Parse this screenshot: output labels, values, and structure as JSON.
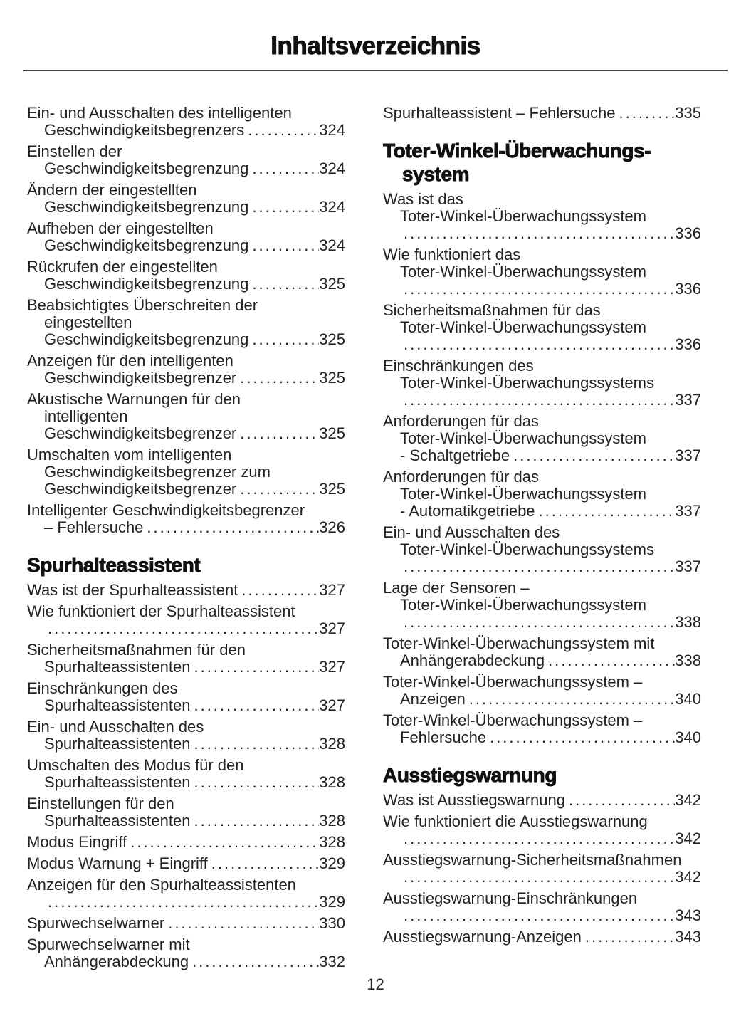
{
  "page": {
    "title": "Inhaltsverzeichnis",
    "footer_page_number": "12"
  },
  "colors": {
    "text": "#222222",
    "heading": "#111111",
    "rule": "#3a3a3a",
    "background": "#ffffff"
  },
  "columns": [
    {
      "blocks": [
        {
          "type": "entries",
          "items": [
            {
              "lines": [
                "Ein- und Ausschalten des intelligenten",
                "Geschwindigkeitsbegrenzers"
              ],
              "page": "324"
            },
            {
              "lines": [
                "Einstellen der",
                "Geschwindigkeitsbegrenzung"
              ],
              "page": "324"
            },
            {
              "lines": [
                "Ändern der eingestellten",
                "Geschwindigkeitsbegrenzung"
              ],
              "page": "324"
            },
            {
              "lines": [
                "Aufheben der eingestellten",
                "Geschwindigkeitsbegrenzung"
              ],
              "page": "324"
            },
            {
              "lines": [
                "Rückrufen der eingestellten",
                "Geschwindigkeitsbegrenzung"
              ],
              "page": "325"
            },
            {
              "lines": [
                "Beabsichtigtes Überschreiten der",
                "eingestellten",
                "Geschwindigkeitsbegrenzung"
              ],
              "page": "325"
            },
            {
              "lines": [
                "Anzeigen für den intelligenten",
                "Geschwindigkeitsbegrenzer"
              ],
              "page": "325"
            },
            {
              "lines": [
                "Akustische Warnungen für den",
                "intelligenten",
                "Geschwindigkeitsbegrenzer"
              ],
              "page": "325"
            },
            {
              "lines": [
                "Umschalten vom intelligenten",
                "Geschwindigkeitsbegrenzer zum",
                "Geschwindigkeitsbegrenzer"
              ],
              "page": "325"
            },
            {
              "lines": [
                "Intelligenter Geschwindigkeitsbegrenzer",
                "– Fehlersuche"
              ],
              "page": "326"
            }
          ]
        },
        {
          "type": "heading",
          "lines": [
            "Spurhalteassistent"
          ]
        },
        {
          "type": "entries",
          "items": [
            {
              "lines": [
                "Was ist der Spurhalteassistent"
              ],
              "page": "327"
            },
            {
              "lines": [
                "Wie funktioniert der Spurhalteassistent",
                ""
              ],
              "page": "327"
            },
            {
              "lines": [
                "Sicherheitsmaßnahmen für den",
                "Spurhalteassistenten"
              ],
              "page": "327"
            },
            {
              "lines": [
                "Einschränkungen des",
                "Spurhalteassistenten"
              ],
              "page": "327"
            },
            {
              "lines": [
                "Ein- und Ausschalten des",
                "Spurhalteassistenten"
              ],
              "page": "328"
            },
            {
              "lines": [
                "Umschalten des Modus für den",
                "Spurhalteassistenten"
              ],
              "page": "328"
            },
            {
              "lines": [
                "Einstellungen für den",
                "Spurhalteassistenten"
              ],
              "page": "328"
            },
            {
              "lines": [
                "Modus Eingriff"
              ],
              "page": "328"
            },
            {
              "lines": [
                "Modus Warnung + Eingriff"
              ],
              "page": "329"
            },
            {
              "lines": [
                "Anzeigen für den Spurhalteassistenten",
                ""
              ],
              "page": "329"
            },
            {
              "lines": [
                "Spurwechselwarner"
              ],
              "page": "330"
            },
            {
              "lines": [
                "Spurwechselwarner mit",
                "Anhängerabdeckung"
              ],
              "page": "332"
            }
          ]
        }
      ]
    },
    {
      "blocks": [
        {
          "type": "entries",
          "items": [
            {
              "lines": [
                "Spurhalteassistent – Fehlersuche"
              ],
              "page": "335"
            }
          ]
        },
        {
          "type": "heading",
          "lines": [
            "Toter-Winkel-Überwachungs-",
            "system"
          ]
        },
        {
          "type": "entries",
          "items": [
            {
              "lines": [
                "Was ist das",
                "Toter-Winkel-Überwachungssystem",
                ""
              ],
              "page": "336"
            },
            {
              "lines": [
                "Wie funktioniert das",
                "Toter-Winkel-Überwachungssystem",
                ""
              ],
              "page": "336"
            },
            {
              "lines": [
                "Sicherheitsmaßnahmen für das",
                "Toter-Winkel-Überwachungssystem",
                ""
              ],
              "page": "336"
            },
            {
              "lines": [
                "Einschränkungen des",
                "Toter-Winkel-Überwachungssystems",
                ""
              ],
              "page": "337"
            },
            {
              "lines": [
                "Anforderungen für das",
                "Toter-Winkel-Überwachungssystem",
                "- Schaltgetriebe"
              ],
              "page": "337"
            },
            {
              "lines": [
                "Anforderungen für das",
                "Toter-Winkel-Überwachungssystem",
                "- Automatikgetriebe"
              ],
              "page": "337"
            },
            {
              "lines": [
                "Ein- und Ausschalten des",
                "Toter-Winkel-Überwachungssystems",
                ""
              ],
              "page": "337"
            },
            {
              "lines": [
                "Lage der Sensoren –",
                "Toter-Winkel-Überwachungssystem",
                ""
              ],
              "page": "338"
            },
            {
              "lines": [
                "Toter-Winkel-Überwachungssystem mit",
                "Anhängerabdeckung"
              ],
              "page": "338"
            },
            {
              "lines": [
                "Toter-Winkel-Überwachungssystem –",
                "Anzeigen"
              ],
              "page": "340"
            },
            {
              "lines": [
                "Toter-Winkel-Überwachungssystem –",
                "Fehlersuche"
              ],
              "page": "340"
            }
          ]
        },
        {
          "type": "heading",
          "lines": [
            "Ausstiegswarnung"
          ]
        },
        {
          "type": "entries",
          "items": [
            {
              "lines": [
                "Was ist Ausstiegswarnung"
              ],
              "page": "342"
            },
            {
              "lines": [
                "Wie funktioniert die Ausstiegswarnung",
                ""
              ],
              "page": "342"
            },
            {
              "lines": [
                "Ausstiegswarnung-Sicherheitsmaßnahmen",
                ""
              ],
              "page": "342"
            },
            {
              "lines": [
                "Ausstiegswarnung-Einschränkungen",
                ""
              ],
              "page": "343"
            },
            {
              "lines": [
                "Ausstiegswarnung-Anzeigen"
              ],
              "page": "343"
            }
          ]
        }
      ]
    }
  ]
}
